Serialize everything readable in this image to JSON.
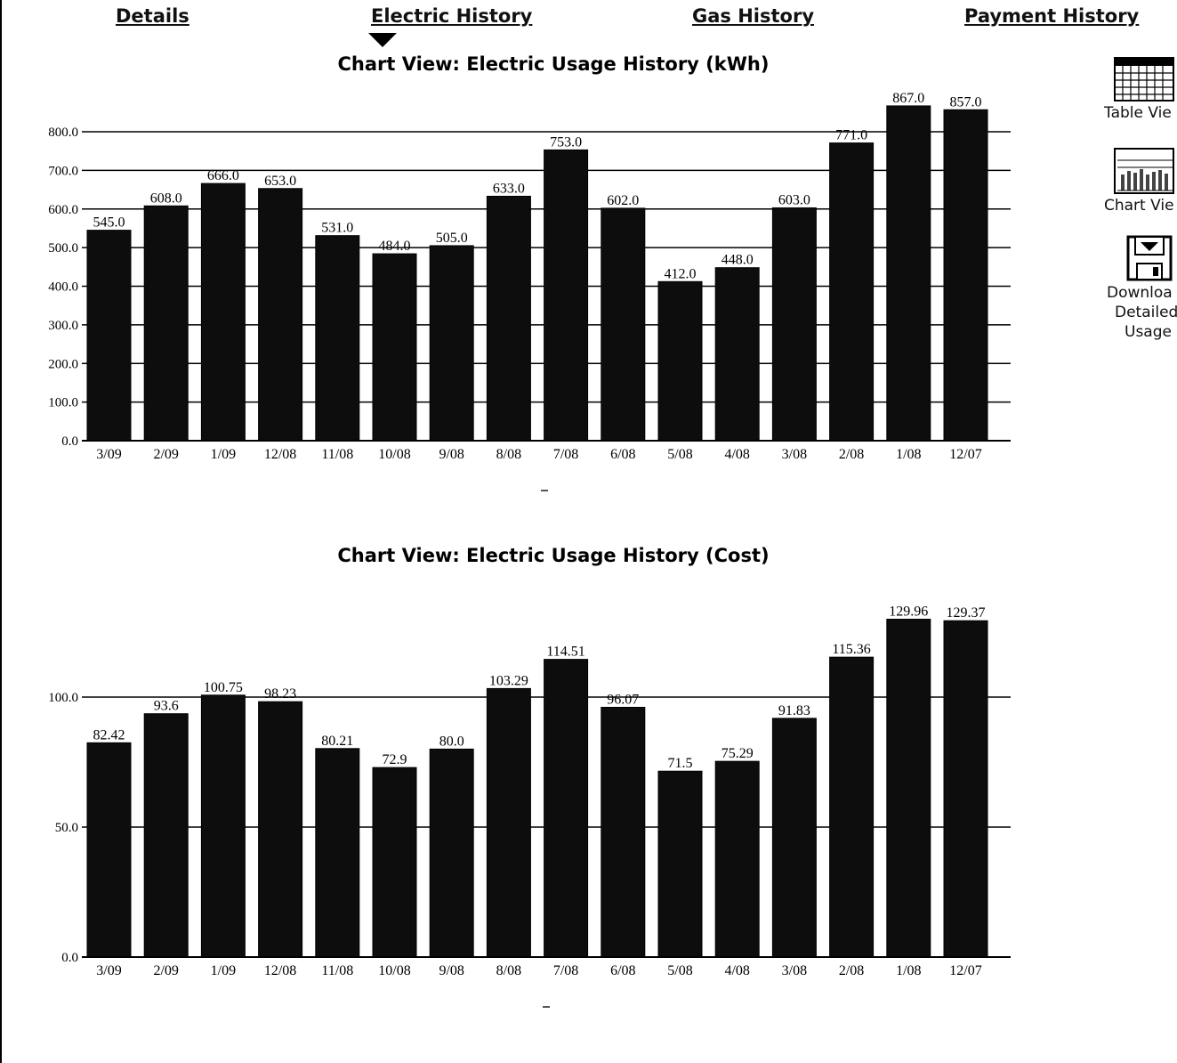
{
  "nav": {
    "details": "Details",
    "electric_history": "Electric History",
    "gas_history": "Gas History",
    "payment_history": "Payment History",
    "active_tab": "electric_history"
  },
  "side_panel": {
    "table_view_label": "Table Vie",
    "chart_view_label": "Chart Vie",
    "download_lines": [
      "Downloa",
      "Detailed",
      "Usage"
    ]
  },
  "colors": {
    "bar": "#0d0d0d",
    "grid": "#000000",
    "background": "#ffffff"
  },
  "chart_data": [
    {
      "type": "bar",
      "title": "Chart View: Electric Usage History (kWh)",
      "categories": [
        "3/09",
        "2/09",
        "1/09",
        "12/08",
        "11/08",
        "10/08",
        "9/08",
        "8/08",
        "7/08",
        "6/08",
        "5/08",
        "4/08",
        "3/08",
        "2/08",
        "1/08",
        "12/07"
      ],
      "values": [
        545.0,
        608.0,
        666.0,
        653.0,
        531.0,
        484.0,
        505.0,
        633.0,
        753.0,
        602.0,
        412.0,
        448.0,
        603.0,
        771.0,
        867.0,
        857.0
      ],
      "value_labels": [
        "545.0",
        "608.0",
        "666.0",
        "653.0",
        "531.0",
        "484.0",
        "505.0",
        "633.0",
        "753.0",
        "602.0",
        "412.0",
        "448.0",
        "603.0",
        "771.0",
        "867.0",
        "857.0"
      ],
      "yticks": [
        0,
        100,
        200,
        300,
        400,
        500,
        600,
        700,
        800
      ],
      "ytick_labels": [
        "0.0",
        "100.0",
        "200.0",
        "300.0",
        "400.0",
        "500.0",
        "600.0",
        "700.0",
        "800.0"
      ],
      "ylim": [
        0,
        900
      ],
      "xlabel": "",
      "ylabel": "",
      "grid": true
    },
    {
      "type": "bar",
      "title": "Chart View: Electric Usage History (Cost)",
      "categories": [
        "3/09",
        "2/09",
        "1/09",
        "12/08",
        "11/08",
        "10/08",
        "9/08",
        "8/08",
        "7/08",
        "6/08",
        "5/08",
        "4/08",
        "3/08",
        "2/08",
        "1/08",
        "12/07"
      ],
      "values": [
        82.42,
        93.6,
        100.75,
        98.23,
        80.21,
        72.9,
        80.0,
        103.29,
        114.51,
        96.07,
        71.5,
        75.29,
        91.83,
        115.36,
        129.96,
        129.37
      ],
      "value_labels": [
        "82.42",
        "93.6",
        "100.75",
        "98.23",
        "80.21",
        "72.9",
        "80.0",
        "103.29",
        "114.51",
        "96.07",
        "71.5",
        "75.29",
        "91.83",
        "115.36",
        "129.96",
        "129.37"
      ],
      "yticks": [
        0,
        50,
        100
      ],
      "ytick_labels": [
        "0.0",
        "50.0",
        "100.0"
      ],
      "ylim": [
        0,
        135
      ],
      "xlabel": "",
      "ylabel": "",
      "grid": true
    }
  ]
}
